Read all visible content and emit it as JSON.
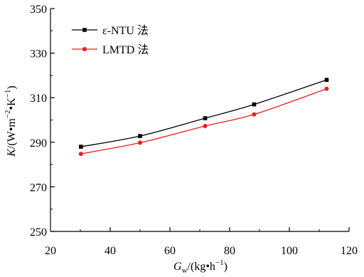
{
  "chart_data": {
    "type": "line",
    "xlabel": {
      "main": "G",
      "sub": "w",
      "rest": "/(kg•h",
      "sup": "−1",
      "close": ")"
    },
    "ylabel": {
      "main": "K",
      "rest": "/(W•m",
      "sup1": "−2",
      "mid": "•K",
      "sup2": "−1",
      "close": ")"
    },
    "xlim": [
      20,
      120
    ],
    "ylim": [
      250,
      350
    ],
    "xticks": [
      20,
      40,
      60,
      80,
      100,
      120
    ],
    "yticks": [
      250,
      270,
      290,
      310,
      330,
      350
    ],
    "grid": false,
    "legend_position": "top-left",
    "series": [
      {
        "name": "ε-NTU 法",
        "color": "#000000",
        "marker": "square",
        "x": [
          30.2,
          50.0,
          71.8,
          88.2,
          112.5
        ],
        "y": [
          288.0,
          292.8,
          300.8,
          307.0,
          318.0
        ]
      },
      {
        "name": "LMTD 法",
        "color": "#ee1c1c",
        "marker": "circle",
        "x": [
          30.2,
          50.0,
          71.8,
          88.2,
          112.5
        ],
        "y": [
          284.8,
          289.8,
          297.3,
          302.5,
          314.0
        ]
      }
    ]
  }
}
